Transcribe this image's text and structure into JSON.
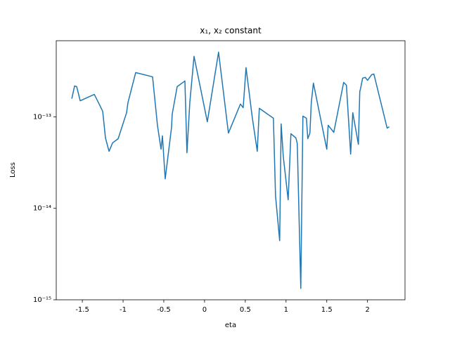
{
  "chart_data": {
    "type": "line",
    "title": "x₁, x₂ constant",
    "xlabel": "eta",
    "ylabel": "Loss",
    "log_y": true,
    "grid": false,
    "xlim": [
      -1.82,
      2.46
    ],
    "xticks": [
      -1.5,
      -1.0,
      -0.5,
      0.0,
      0.5,
      1.0,
      1.5,
      2.0
    ],
    "ylim": [
      1e-15,
      6.8e-13
    ],
    "yticks": [
      {
        "value": 1e-15,
        "label": "10⁻¹⁵"
      },
      {
        "value": 1e-14,
        "label": "10⁻¹⁴"
      },
      {
        "value": 1e-13,
        "label": "10⁻¹³"
      }
    ],
    "x": [
      -1.629,
      -1.595,
      -1.569,
      -1.526,
      -1.353,
      -1.302,
      -1.25,
      -1.216,
      -1.172,
      -1.129,
      -1.06,
      -0.957,
      -0.94,
      -0.845,
      -0.638,
      -0.578,
      -0.534,
      -0.517,
      -0.483,
      -0.405,
      -0.397,
      -0.336,
      -0.241,
      -0.216,
      -0.181,
      -0.129,
      0.034,
      0.172,
      0.293,
      0.44,
      0.474,
      0.509,
      0.586,
      0.647,
      0.672,
      0.845,
      0.871,
      0.922,
      0.94,
      0.966,
      1.026,
      1.06,
      1.121,
      1.138,
      1.181,
      1.207,
      1.25,
      1.267,
      1.293,
      1.31,
      1.336,
      1.5,
      1.517,
      1.586,
      1.707,
      1.741,
      1.793,
      1.819,
      1.888,
      1.905,
      1.914,
      1.94,
      1.974,
      2.0,
      2.052,
      2.078,
      2.241,
      2.267
    ],
    "series": [
      {
        "name": "Loss",
        "color": "#1f77b4",
        "values": [
          1.58e-13,
          2.18e-13,
          2.14e-13,
          1.5e-13,
          1.76e-13,
          1.43e-13,
          1.15e-13,
          5.88e-14,
          4.2e-14,
          5.19e-14,
          5.78e-14,
          1.11e-13,
          1.43e-13,
          3.05e-13,
          2.74e-13,
          8.09e-14,
          4.43e-14,
          6.2e-14,
          2.1e-14,
          7.67e-14,
          1.07e-13,
          2.14e-13,
          2.47e-13,
          4.05e-14,
          1.43e-13,
          4.59e-13,
          8.83e-14,
          5.1e-13,
          6.65e-14,
          1.38e-13,
          1.26e-13,
          3.45e-13,
          9.8e-14,
          4.2e-14,
          1.24e-13,
          9.66e-14,
          1.37e-14,
          4.43e-15,
          8.38e-14,
          3.71e-14,
          1.24e-14,
          6.54e-14,
          5.88e-14,
          5.1e-14,
          1.33e-15,
          1.02e-13,
          9.66e-14,
          5.78e-14,
          6.65e-14,
          1.43e-13,
          2.34e-13,
          4.43e-14,
          8.09e-14,
          6.77e-14,
          2.38e-13,
          2.22e-13,
          3.91e-14,
          1.11e-13,
          5.01e-14,
          1.89e-13,
          2.03e-13,
          2.65e-13,
          2.7e-13,
          2.51e-13,
          2.9e-13,
          2.94e-13,
          7.53e-14,
          7.8e-14
        ]
      }
    ]
  }
}
